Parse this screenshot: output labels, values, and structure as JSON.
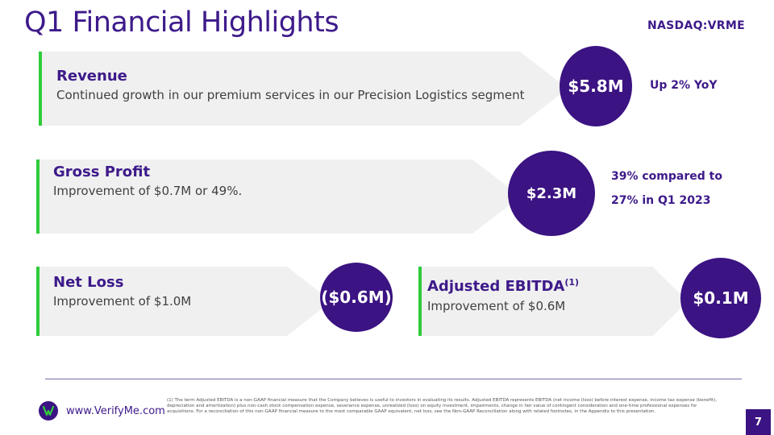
{
  "header": {
    "title": "Q1  Financial Highlights",
    "ticker": "NASDAQ:VRME"
  },
  "highlights": {
    "revenue": {
      "title": "Revenue",
      "description": "Continued growth in our premium services in our Precision Logistics segment",
      "value": "$5.8M",
      "note": "Up 2% YoY"
    },
    "gross_profit": {
      "title": "Gross Profit",
      "description": "Improvement of $0.7M or 49%.",
      "value": "$2.3M",
      "note_line1": "39% compared to",
      "note_line2": "27% in Q1 2023"
    },
    "net_loss": {
      "title": "Net Loss",
      "description": "Improvement of $1.0M",
      "value": "($0.6M)"
    },
    "adjusted_ebitda": {
      "title": "Adjusted EBITDA",
      "footnote_marker": "(1)",
      "description": "Improvement of $0.6M",
      "value": "$0.1M"
    }
  },
  "footer": {
    "website": "www.VerifyMe.com",
    "footnote": "(1) The term Adjusted EBITDA is a non-GAAP financial measure that the Company believes is useful to investors in evaluating its results. Adjusted EBITDA represents EBITDA (net income (loss) before interest expense, income tax expense (benefit), depreciation and amortization) plus non-cash stock compensation expense, severance expense, unrealized (loss) on equity investment, impairments, change in fair value of contingent consideration and one-time professional expenses for acquisitions. For a reconciliation of this non-GAAP financial measure to the most comparable GAAP equivalent, net loss, see the Non-GAAP Reconciliation along with related footnotes, in the Appendix to this presentation.",
    "page_number": "7"
  },
  "colors": {
    "brand_purple": "#3b1382",
    "accent_green": "#2ecc3a",
    "band_gray": "#f0f0f0"
  }
}
